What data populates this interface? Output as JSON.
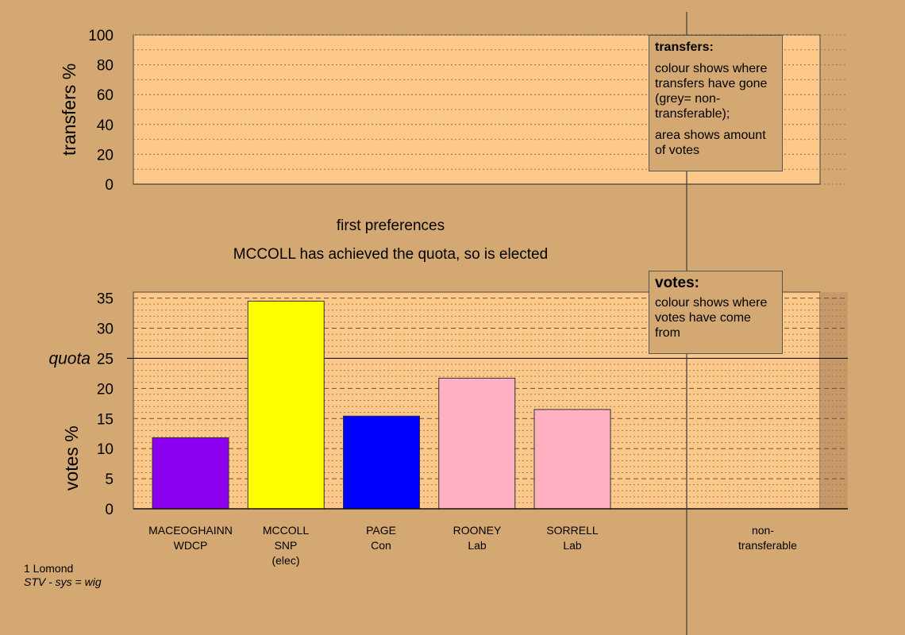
{
  "titles": {
    "stage": "first preferences",
    "status": "MCCOLL has achieved the quota, so is elected"
  },
  "transfers_legend": {
    "title": "transfers:",
    "line1": "colour shows where transfers have gone (grey= non-transferable);",
    "line2": "area shows amount of votes"
  },
  "votes_legend": {
    "title": "votes:",
    "line1": "colour shows where votes have come from"
  },
  "footer": {
    "line1": "1 Lomond",
    "line2": "STV - sys = wig"
  },
  "colors": {
    "background": "#d4a873",
    "plot_area": "#fcc98a"
  },
  "chart_data": [
    {
      "type": "bar",
      "id": "transfers",
      "ylabel": "transfers %",
      "ylim": [
        0,
        100
      ],
      "yticks": [
        0,
        20,
        40,
        60,
        80,
        100
      ],
      "grid": "dotted",
      "categories": [],
      "values": []
    },
    {
      "type": "bar",
      "id": "votes",
      "ylabel": "votes %",
      "ylim": [
        0,
        35
      ],
      "yticks": [
        0,
        5,
        10,
        15,
        20,
        25,
        30,
        35
      ],
      "grid": "dotted+dashed",
      "quota": {
        "label": "quota",
        "value": 25
      },
      "categories": [
        {
          "name": "MACEOGHAINN",
          "party": "WDCP",
          "note": "",
          "color": "#8b00ee"
        },
        {
          "name": "MCCOLL",
          "party": "SNP",
          "note": "(elec)",
          "color": "#ffff00"
        },
        {
          "name": "PAGE",
          "party": "Con",
          "note": "",
          "color": "#0000ff"
        },
        {
          "name": "ROONEY",
          "party": "Lab",
          "note": "",
          "color": "#ffb1c1"
        },
        {
          "name": "SORRELL",
          "party": "Lab",
          "note": "",
          "color": "#ffb1c1"
        }
      ],
      "values": [
        11.8,
        34.5,
        15.4,
        21.7,
        16.5
      ],
      "extra_category": "non-transferable"
    }
  ]
}
